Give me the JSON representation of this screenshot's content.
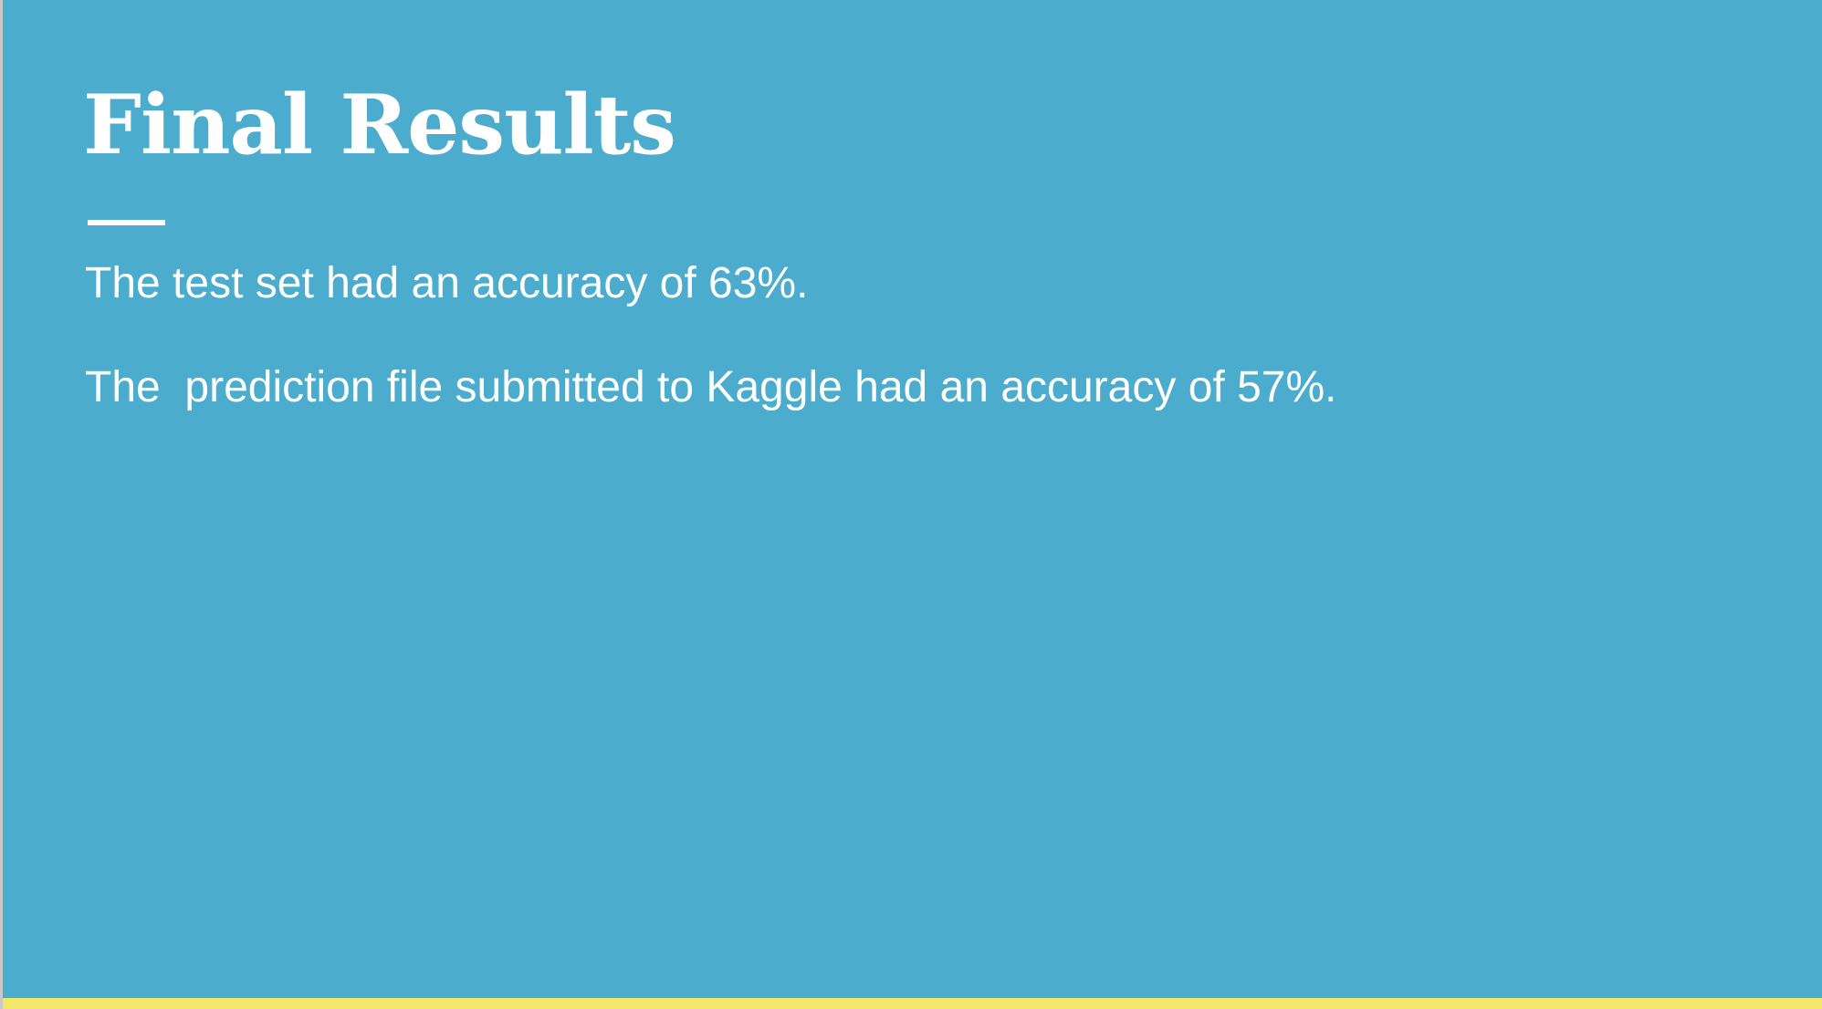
{
  "slide": {
    "title": "Final Results",
    "lines": [
      "The test set had an accuracy of 63%.",
      "The  prediction file submitted to Kaggle had an accuracy of 57%."
    ]
  },
  "colors": {
    "background": "#4cacce",
    "text": "#ffffff",
    "accent_bar": "#f2e76a"
  }
}
